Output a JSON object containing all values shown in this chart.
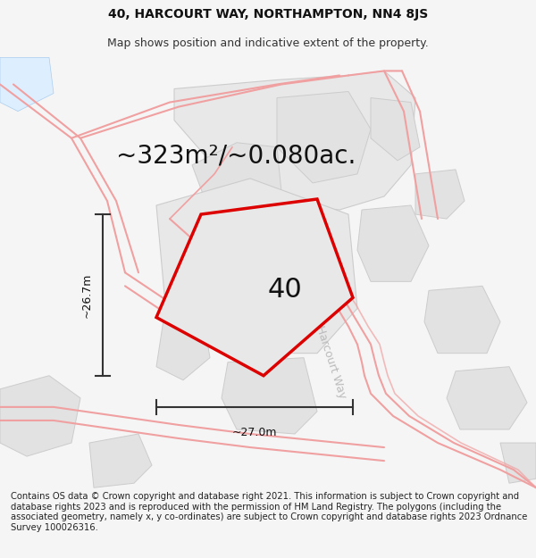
{
  "title_line1": "40, HARCOURT WAY, NORTHAMPTON, NN4 8JS",
  "title_line2": "Map shows position and indicative extent of the property.",
  "area_text": "~323m²/~0.080ac.",
  "dim_width": "~27.0m",
  "dim_height": "~26.7m",
  "property_label": "40",
  "road_label": "Harcourt Way",
  "footer_text": "Contains OS data © Crown copyright and database right 2021. This information is subject to Crown copyright and database rights 2023 and is reproduced with the permission of HM Land Registry. The polygons (including the associated geometry, namely x, y co-ordinates) are subject to Crown copyright and database rights 2023 Ordnance Survey 100026316.",
  "bg_color": "#f5f5f5",
  "map_bg": "#ffffff",
  "property_fill": "#e8e8e8",
  "property_edge": "#dd0000",
  "nearby_fill": "#e2e2e2",
  "nearby_edge": "#cccccc",
  "road_color": "#f0a0a0",
  "dim_color": "#333333",
  "title_fontsize": 10,
  "subtitle_fontsize": 9,
  "area_fontsize": 20,
  "label_fontsize": 22,
  "footer_fontsize": 7.2,
  "road_label_fontsize": 9,
  "road_label_color": "#bbbbbb"
}
